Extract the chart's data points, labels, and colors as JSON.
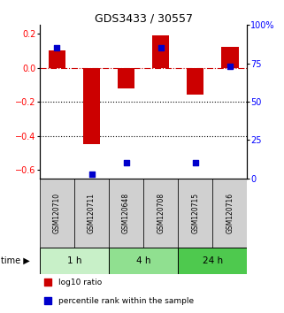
{
  "title": "GDS3433 / 30557",
  "samples": [
    "GSM120710",
    "GSM120711",
    "GSM120648",
    "GSM120708",
    "GSM120715",
    "GSM120716"
  ],
  "log10_ratio": [
    0.1,
    -0.45,
    -0.12,
    0.19,
    -0.16,
    0.12
  ],
  "percentile_rank": [
    85,
    3,
    10,
    85,
    10,
    73
  ],
  "time_groups": [
    {
      "label": "1 h",
      "indices": [
        0,
        1
      ],
      "color": "#c8f0c8"
    },
    {
      "label": "4 h",
      "indices": [
        2,
        3
      ],
      "color": "#90e090"
    },
    {
      "label": "24 h",
      "indices": [
        4,
        5
      ],
      "color": "#4ec94e"
    }
  ],
  "bar_color": "#cc0000",
  "dot_color": "#0000cc",
  "ylim_left": [
    -0.65,
    0.25
  ],
  "ylim_right": [
    0,
    100
  ],
  "yticks_left": [
    0.2,
    0.0,
    -0.2,
    -0.4,
    -0.6
  ],
  "yticks_right": [
    100,
    75,
    50,
    25,
    0
  ],
  "bar_width": 0.5,
  "dot_size": 25,
  "background_color": "#ffffff",
  "legend_items": [
    "log10 ratio",
    "percentile rank within the sample"
  ],
  "zero_line_color": "#cc0000",
  "grid_line_color": "#000000",
  "sample_label_color": "#d0d0d0"
}
